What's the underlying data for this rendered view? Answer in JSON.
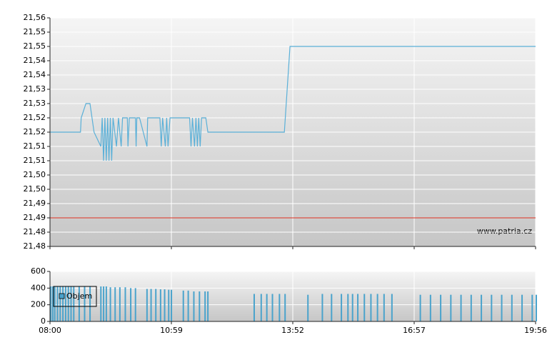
{
  "chart_data": [
    {
      "type": "line",
      "color": "#5ab0d8",
      "x": [
        "08:00",
        "08:45",
        "08:46",
        "08:53",
        "08:59",
        "09:05",
        "09:15",
        "09:17",
        "09:19",
        "09:21",
        "09:23",
        "09:25",
        "09:27",
        "09:29",
        "09:31",
        "09:33",
        "09:38",
        "09:41",
        "09:45",
        "09:47",
        "09:54",
        "09:55",
        "09:57",
        "10:06",
        "10:07",
        "10:08",
        "10:12",
        "10:23",
        "10:24",
        "10:42",
        "10:44",
        "10:46",
        "10:50",
        "10:52",
        "10:54",
        "10:57",
        "11:02",
        "11:25",
        "11:27",
        "11:29",
        "11:32",
        "11:34",
        "11:36",
        "11:38",
        "11:40",
        "11:42",
        "11:44",
        "11:48",
        "11:51",
        "13:40",
        "13:48",
        "19:56"
      ],
      "values": [
        21.52,
        21.52,
        21.525,
        21.53,
        21.53,
        21.52,
        21.515,
        21.525,
        21.51,
        21.525,
        21.51,
        21.525,
        21.51,
        21.525,
        21.51,
        21.525,
        21.515,
        21.525,
        21.515,
        21.525,
        21.525,
        21.515,
        21.525,
        21.525,
        21.515,
        21.525,
        21.525,
        21.515,
        21.525,
        21.525,
        21.515,
        21.525,
        21.515,
        21.525,
        21.515,
        21.525,
        21.525,
        21.525,
        21.515,
        21.525,
        21.515,
        21.525,
        21.515,
        21.525,
        21.515,
        21.525,
        21.525,
        21.525,
        21.52,
        21.52,
        21.55,
        21.55
      ],
      "ylim": [
        21.48,
        21.56
      ],
      "yticks": [
        {
          "value": 21.48,
          "label": "21,48"
        },
        {
          "value": 21.485,
          "label": "21,48"
        },
        {
          "value": 21.49,
          "label": "21,49"
        },
        {
          "value": 21.495,
          "label": "21,49"
        },
        {
          "value": 21.5,
          "label": "21,50"
        },
        {
          "value": 21.505,
          "label": "21,50"
        },
        {
          "value": 21.51,
          "label": "21,51"
        },
        {
          "value": 21.515,
          "label": "21,51"
        },
        {
          "value": 21.52,
          "label": "21,52"
        },
        {
          "value": 21.525,
          "label": "21,52"
        },
        {
          "value": 21.53,
          "label": "21,53"
        },
        {
          "value": 21.535,
          "label": "21,53"
        },
        {
          "value": 21.54,
          "label": "21,54"
        },
        {
          "value": 21.545,
          "label": "21,54"
        },
        {
          "value": 21.55,
          "label": "21,55"
        },
        {
          "value": 21.555,
          "label": "21,55"
        },
        {
          "value": 21.56,
          "label": "21,56"
        }
      ],
      "reference_line": 21.49,
      "reference_color": "#e03020",
      "grid": true,
      "watermark": "www.patria.cz"
    },
    {
      "type": "bar",
      "color": "#4aa3cc",
      "legend": "left",
      "xlim": [
        "08:00",
        "19:56"
      ],
      "xticks": [
        "08:00",
        "10:59",
        "13:52",
        "16:57",
        "19:56"
      ],
      "ylim": [
        0,
        600
      ],
      "yticks": [
        0,
        200,
        400,
        600
      ],
      "grid": true,
      "series": [
        {
          "name": "Objem",
          "color": "#4aa3cc",
          "x": [
            "08:00",
            "08:03",
            "08:06",
            "08:10",
            "08:14",
            "08:18",
            "08:22",
            "08:26",
            "08:30",
            "08:34",
            "08:42",
            "08:50",
            "08:58",
            "09:14",
            "09:18",
            "09:22",
            "09:28",
            "09:35",
            "09:42",
            "09:50",
            "09:58",
            "10:05",
            "10:22",
            "10:28",
            "10:35",
            "10:42",
            "10:48",
            "10:54",
            "10:58",
            "11:15",
            "11:22",
            "11:30",
            "11:38",
            "11:46",
            "11:50",
            "12:56",
            "13:06",
            "13:14",
            "13:22",
            "13:32",
            "13:40",
            "14:14",
            "14:36",
            "14:50",
            "15:05",
            "15:15",
            "15:22",
            "15:30",
            "15:40",
            "15:50",
            "16:00",
            "16:10",
            "16:22",
            "17:05",
            "17:20",
            "17:35",
            "17:50",
            "18:05",
            "18:20",
            "18:35",
            "18:50",
            "19:05",
            "19:20",
            "19:35",
            "19:50",
            "19:56"
          ],
          "values": [
            420,
            420,
            420,
            420,
            420,
            420,
            420,
            420,
            420,
            420,
            420,
            420,
            420,
            420,
            420,
            420,
            410,
            410,
            410,
            410,
            400,
            400,
            390,
            390,
            390,
            385,
            385,
            380,
            380,
            370,
            370,
            360,
            360,
            360,
            360,
            330,
            330,
            330,
            330,
            330,
            330,
            320,
            330,
            330,
            330,
            330,
            330,
            330,
            330,
            330,
            330,
            330,
            330,
            320,
            320,
            320,
            320,
            320,
            320,
            320,
            320,
            320,
            320,
            320,
            320,
            320
          ]
        }
      ]
    }
  ]
}
